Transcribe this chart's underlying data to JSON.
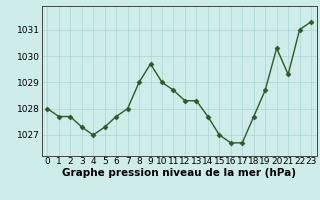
{
  "x": [
    0,
    1,
    2,
    3,
    4,
    5,
    6,
    7,
    8,
    9,
    10,
    11,
    12,
    13,
    14,
    15,
    16,
    17,
    18,
    19,
    20,
    21,
    22,
    23
  ],
  "y": [
    1028.0,
    1027.7,
    1027.7,
    1027.3,
    1027.0,
    1027.3,
    1027.7,
    1028.0,
    1029.0,
    1029.7,
    1029.0,
    1028.7,
    1028.3,
    1028.3,
    1027.7,
    1027.0,
    1026.7,
    1026.7,
    1027.7,
    1028.7,
    1030.3,
    1029.3,
    1031.0,
    1031.3
  ],
  "line_color": "#2d5a27",
  "marker": "D",
  "marker_size": 2.5,
  "bg_color": "#ceecea",
  "grid_color": "#aad4d0",
  "xlabel": "Graphe pression niveau de la mer (hPa)",
  "xlabel_fontsize": 7.5,
  "ylabel_ticks": [
    1027,
    1028,
    1029,
    1030,
    1031
  ],
  "ylim": [
    1026.2,
    1031.9
  ],
  "xlim": [
    -0.5,
    23.5
  ],
  "tick_fontsize": 6.5,
  "line_width": 1.0
}
